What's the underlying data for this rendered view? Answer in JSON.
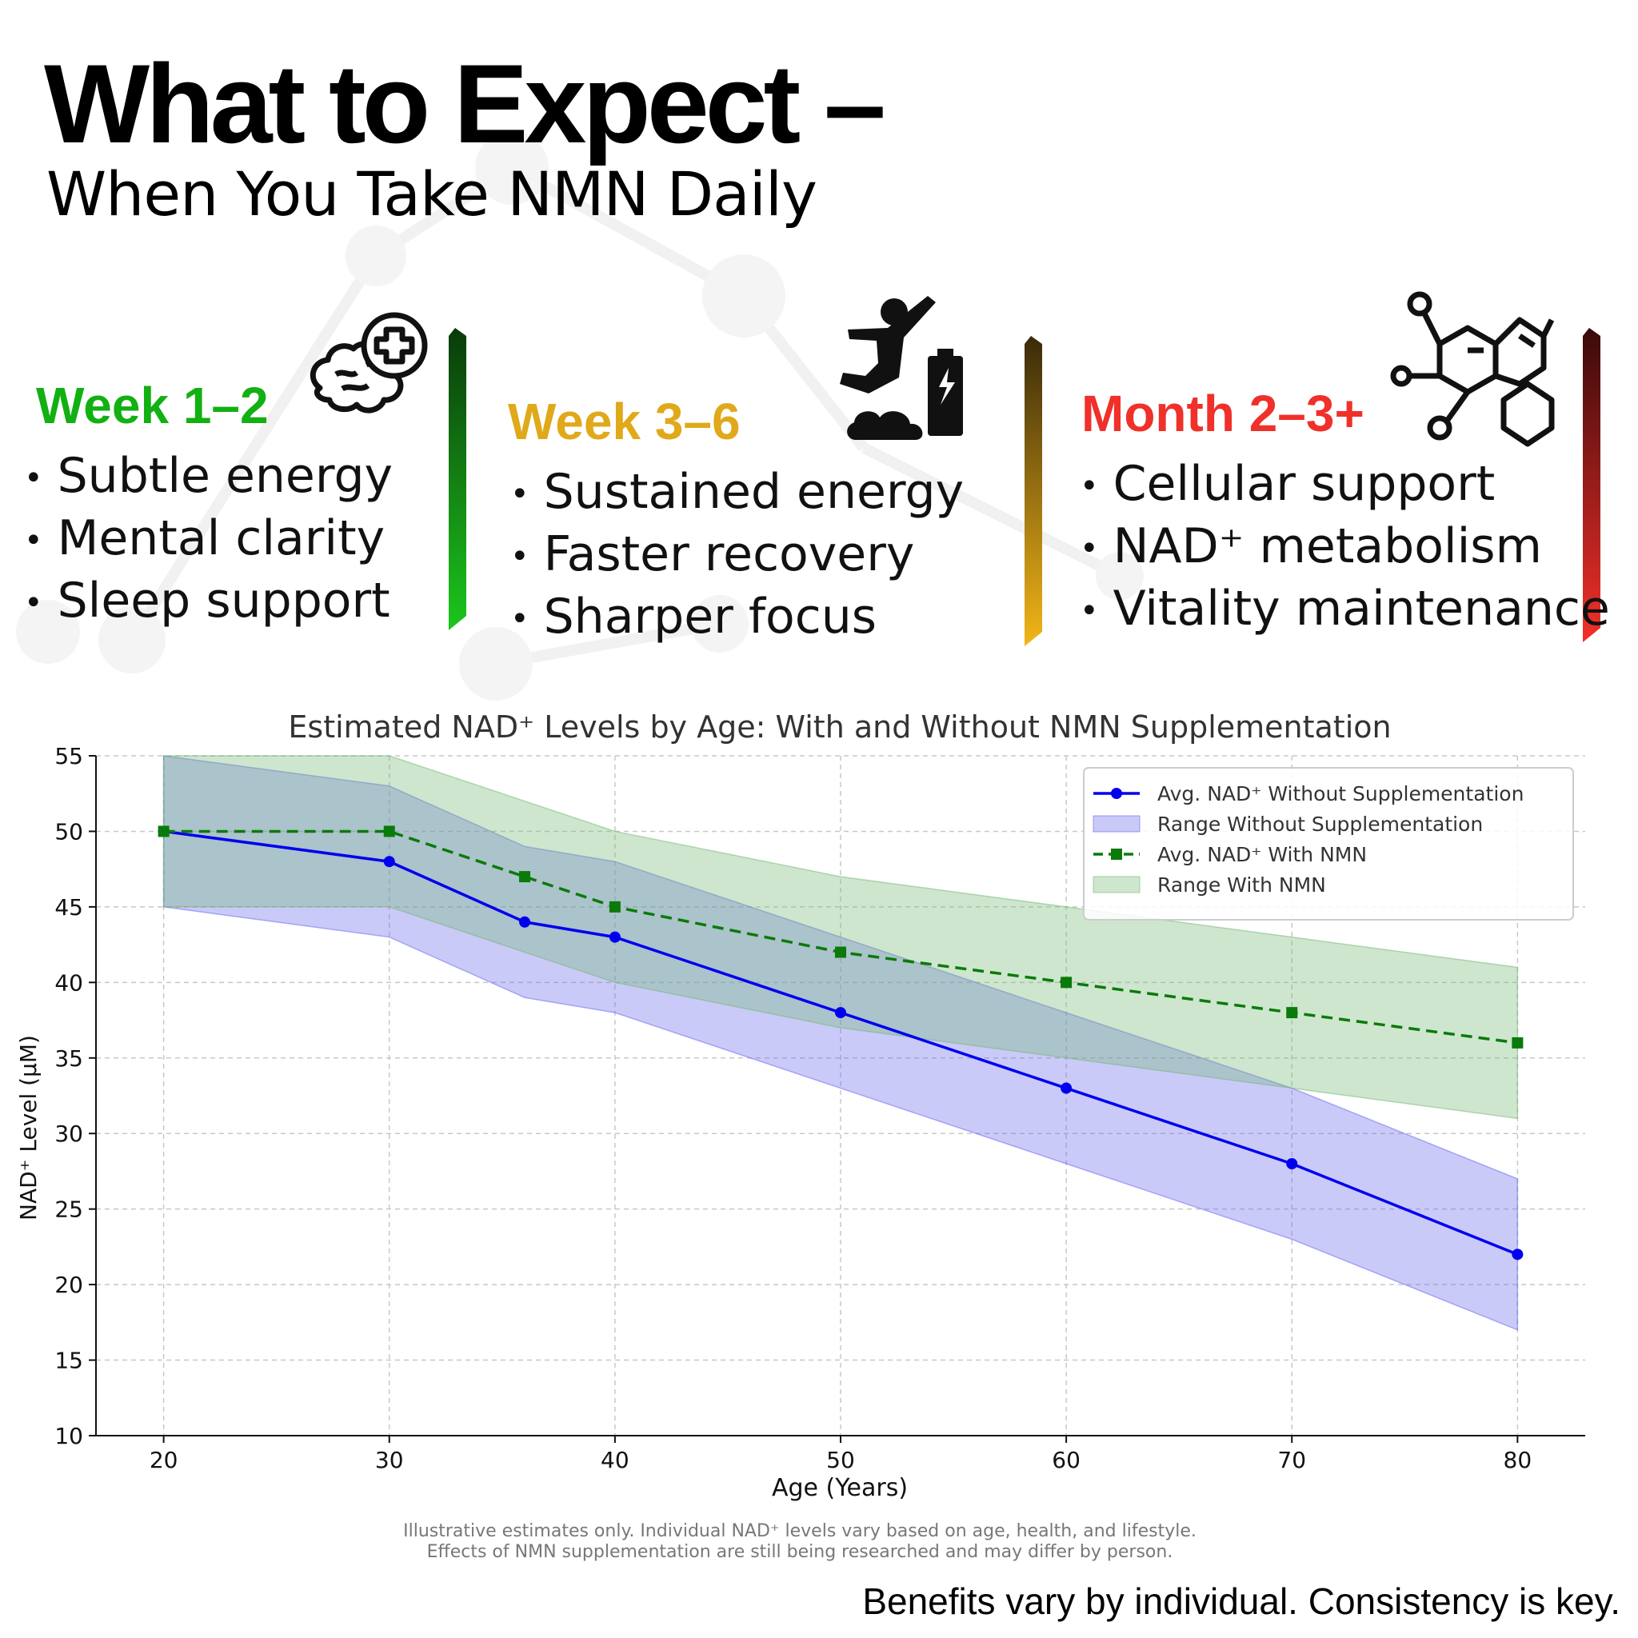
{
  "header": {
    "title": "What to Expect –",
    "subtitle": "When You Take NMN Daily"
  },
  "stages": [
    {
      "label": "Week 1–2",
      "color": "#12b012",
      "icon": "brain-plus-icon",
      "bullets": [
        "Subtle energy",
        "Mental clarity",
        "Sleep support"
      ]
    },
    {
      "label": "Week 3–6",
      "color": "#e0a91a",
      "icon": "jumping-person-battery-icon",
      "bullets": [
        "Sustained energy",
        "Faster recovery",
        "Sharper focus"
      ]
    },
    {
      "label": "Month 2–3+",
      "color": "#f0302a",
      "icon": "molecule-icon",
      "bullets": [
        "Cellular support",
        "NAD⁺ metabolism",
        "Vitality maintenance"
      ]
    }
  ],
  "chart_data": {
    "type": "line",
    "title": "Estimated NAD⁺ Levels by Age: With and Without NMN Supplementation",
    "xlabel": "Age (Years)",
    "ylabel": "NAD⁺ Level (µM)",
    "xlim": [
      17,
      83
    ],
    "ylim": [
      10,
      55
    ],
    "xticks": [
      20,
      30,
      40,
      50,
      60,
      70,
      80
    ],
    "yticks": [
      10,
      15,
      20,
      25,
      30,
      35,
      40,
      45,
      50,
      55
    ],
    "grid": true,
    "legend_position": "top-right",
    "x": [
      20,
      30,
      36,
      40,
      50,
      60,
      70,
      80
    ],
    "series": [
      {
        "name": "Avg. NAD⁺ Without Supplementation",
        "kind": "line",
        "marker": "circle",
        "dash": "solid",
        "color": "#0000ee",
        "values": [
          50,
          48,
          44,
          43,
          38,
          33,
          28,
          22
        ]
      },
      {
        "name": "Range Without Supplementation",
        "kind": "band",
        "color": "#6666ee",
        "lower": [
          45,
          43,
          39,
          38,
          33,
          28,
          23,
          17
        ],
        "upper": [
          55,
          53,
          49,
          48,
          43,
          38,
          33,
          27
        ]
      },
      {
        "name": "Avg. NAD⁺ With NMN",
        "kind": "line",
        "marker": "square",
        "dash": "dashed",
        "color": "#0a7a0a",
        "values": [
          50,
          50,
          47,
          45,
          42,
          40,
          38,
          36
        ]
      },
      {
        "name": "Range With NMN",
        "kind": "band",
        "color": "#72b872",
        "lower": [
          45,
          45,
          42,
          40,
          37,
          35,
          33,
          31
        ],
        "upper": [
          55,
          55,
          52,
          50,
          47,
          45,
          43,
          41
        ]
      }
    ]
  },
  "notes": {
    "line1": "Illustrative estimates only. Individual NAD⁺ levels vary based on age, health, and lifestyle.",
    "line2": "Effects of NMN supplementation are still being researched and may differ by person."
  },
  "footer": {
    "tagline": "Benefits vary by individual. Consistency is key."
  }
}
